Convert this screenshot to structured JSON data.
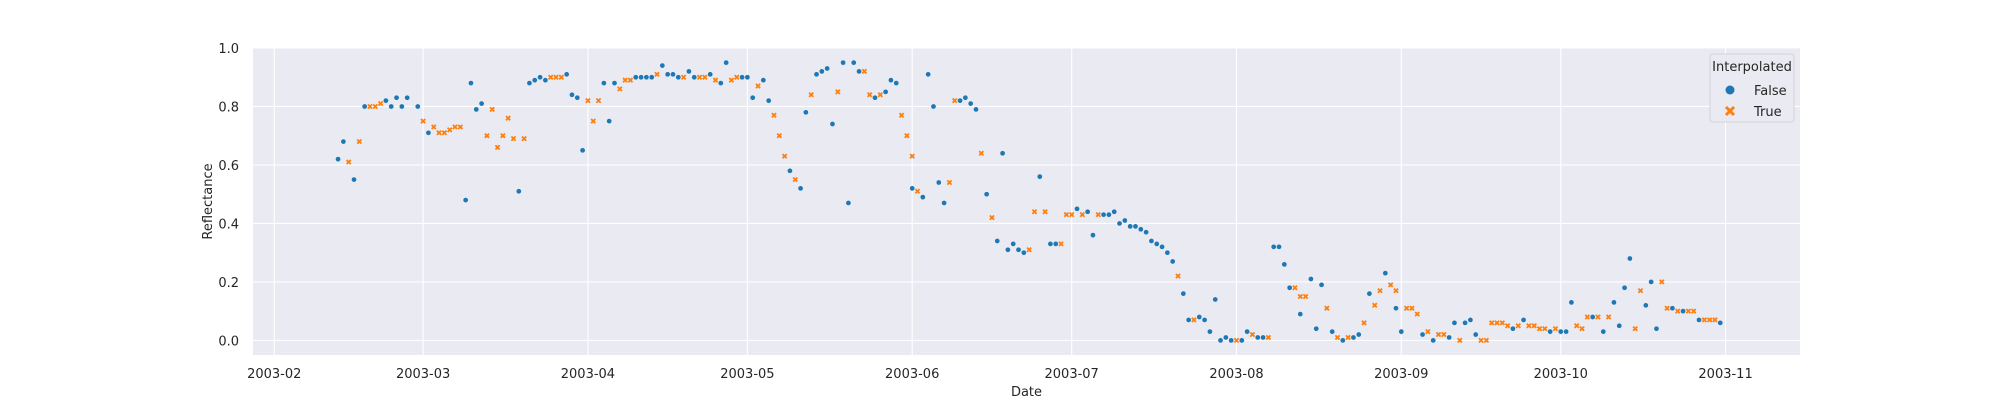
{
  "chart_data": {
    "type": "scatter",
    "title": "",
    "xlabel": "Date",
    "ylabel": "Reflectance",
    "xlim": [
      "2003-01-28",
      "2003-11-15"
    ],
    "ylim": [
      -0.05,
      1.0
    ],
    "grid": true,
    "background": "#eaeaf2",
    "x_ticks": [
      "2003-02",
      "2003-03",
      "2003-04",
      "2003-05",
      "2003-06",
      "2003-07",
      "2003-08",
      "2003-09",
      "2003-10",
      "2003-11"
    ],
    "y_ticks": [
      "0.0",
      "0.2",
      "0.4",
      "0.6",
      "0.8",
      "1.0"
    ],
    "legend": {
      "title": "Interpolated",
      "position": "top-right"
    },
    "series": [
      {
        "name": "False",
        "marker": "circle",
        "color": "#1f77b4",
        "points": [
          [
            "2003-02-13",
            0.62
          ],
          [
            "2003-02-14",
            0.68
          ],
          [
            "2003-02-16",
            0.55
          ],
          [
            "2003-02-18",
            0.8
          ],
          [
            "2003-02-22",
            0.82
          ],
          [
            "2003-02-23",
            0.8
          ],
          [
            "2003-02-24",
            0.83
          ],
          [
            "2003-02-25",
            0.8
          ],
          [
            "2003-02-26",
            0.83
          ],
          [
            "2003-02-28",
            0.8
          ],
          [
            "2003-03-02",
            0.71
          ],
          [
            "2003-03-09",
            0.48
          ],
          [
            "2003-03-10",
            0.88
          ],
          [
            "2003-03-11",
            0.79
          ],
          [
            "2003-03-12",
            0.81
          ],
          [
            "2003-03-19",
            0.51
          ],
          [
            "2003-03-21",
            0.88
          ],
          [
            "2003-03-22",
            0.89
          ],
          [
            "2003-03-23",
            0.9
          ],
          [
            "2003-03-24",
            0.89
          ],
          [
            "2003-03-28",
            0.91
          ],
          [
            "2003-03-29",
            0.84
          ],
          [
            "2003-03-30",
            0.83
          ],
          [
            "2003-03-31",
            0.65
          ],
          [
            "2003-04-04",
            0.88
          ],
          [
            "2003-04-05",
            0.75
          ],
          [
            "2003-04-06",
            0.88
          ],
          [
            "2003-04-10",
            0.9
          ],
          [
            "2003-04-11",
            0.9
          ],
          [
            "2003-04-12",
            0.9
          ],
          [
            "2003-04-13",
            0.9
          ],
          [
            "2003-04-15",
            0.94
          ],
          [
            "2003-04-16",
            0.91
          ],
          [
            "2003-04-17",
            0.91
          ],
          [
            "2003-04-18",
            0.9
          ],
          [
            "2003-04-20",
            0.92
          ],
          [
            "2003-04-21",
            0.9
          ],
          [
            "2003-04-24",
            0.91
          ],
          [
            "2003-04-26",
            0.88
          ],
          [
            "2003-04-27",
            0.95
          ],
          [
            "2003-04-30",
            0.9
          ],
          [
            "2003-05-01",
            0.9
          ],
          [
            "2003-05-02",
            0.83
          ],
          [
            "2003-05-04",
            0.89
          ],
          [
            "2003-05-05",
            0.82
          ],
          [
            "2003-05-09",
            0.58
          ],
          [
            "2003-05-11",
            0.52
          ],
          [
            "2003-05-12",
            0.78
          ],
          [
            "2003-05-14",
            0.91
          ],
          [
            "2003-05-15",
            0.92
          ],
          [
            "2003-05-16",
            0.93
          ],
          [
            "2003-05-17",
            0.74
          ],
          [
            "2003-05-19",
            0.95
          ],
          [
            "2003-05-20",
            0.47
          ],
          [
            "2003-05-21",
            0.95
          ],
          [
            "2003-05-22",
            0.92
          ],
          [
            "2003-05-25",
            0.83
          ],
          [
            "2003-05-27",
            0.85
          ],
          [
            "2003-05-28",
            0.89
          ],
          [
            "2003-05-29",
            0.88
          ],
          [
            "2003-06-01",
            0.52
          ],
          [
            "2003-06-03",
            0.49
          ],
          [
            "2003-06-04",
            0.91
          ],
          [
            "2003-06-05",
            0.8
          ],
          [
            "2003-06-06",
            0.54
          ],
          [
            "2003-06-07",
            0.47
          ],
          [
            "2003-06-10",
            0.82
          ],
          [
            "2003-06-11",
            0.83
          ],
          [
            "2003-06-12",
            0.81
          ],
          [
            "2003-06-13",
            0.79
          ],
          [
            "2003-06-15",
            0.5
          ],
          [
            "2003-06-17",
            0.34
          ],
          [
            "2003-06-18",
            0.64
          ],
          [
            "2003-06-19",
            0.31
          ],
          [
            "2003-06-20",
            0.33
          ],
          [
            "2003-06-21",
            0.31
          ],
          [
            "2003-06-22",
            0.3
          ],
          [
            "2003-06-25",
            0.56
          ],
          [
            "2003-06-27",
            0.33
          ],
          [
            "2003-06-28",
            0.33
          ],
          [
            "2003-07-02",
            0.45
          ],
          [
            "2003-07-04",
            0.44
          ],
          [
            "2003-07-05",
            0.36
          ],
          [
            "2003-07-07",
            0.43
          ],
          [
            "2003-07-08",
            0.43
          ],
          [
            "2003-07-09",
            0.44
          ],
          [
            "2003-07-10",
            0.4
          ],
          [
            "2003-07-11",
            0.41
          ],
          [
            "2003-07-12",
            0.39
          ],
          [
            "2003-07-13",
            0.39
          ],
          [
            "2003-07-14",
            0.38
          ],
          [
            "2003-07-15",
            0.37
          ],
          [
            "2003-07-16",
            0.34
          ],
          [
            "2003-07-17",
            0.33
          ],
          [
            "2003-07-18",
            0.32
          ],
          [
            "2003-07-19",
            0.3
          ],
          [
            "2003-07-20",
            0.27
          ],
          [
            "2003-07-22",
            0.16
          ],
          [
            "2003-07-23",
            0.07
          ],
          [
            "2003-07-25",
            0.08
          ],
          [
            "2003-07-26",
            0.07
          ],
          [
            "2003-07-27",
            0.03
          ],
          [
            "2003-07-28",
            0.14
          ],
          [
            "2003-07-29",
            0.0
          ],
          [
            "2003-07-30",
            0.01
          ],
          [
            "2003-07-31",
            0.0
          ],
          [
            "2003-08-02",
            0.0
          ],
          [
            "2003-08-03",
            0.03
          ],
          [
            "2003-08-05",
            0.01
          ],
          [
            "2003-08-06",
            0.01
          ],
          [
            "2003-08-08",
            0.32
          ],
          [
            "2003-08-09",
            0.32
          ],
          [
            "2003-08-10",
            0.26
          ],
          [
            "2003-08-11",
            0.18
          ],
          [
            "2003-08-13",
            0.09
          ],
          [
            "2003-08-15",
            0.21
          ],
          [
            "2003-08-16",
            0.04
          ],
          [
            "2003-08-17",
            0.19
          ],
          [
            "2003-08-19",
            0.03
          ],
          [
            "2003-08-21",
            0.0
          ],
          [
            "2003-08-23",
            0.01
          ],
          [
            "2003-08-24",
            0.02
          ],
          [
            "2003-08-26",
            0.16
          ],
          [
            "2003-08-29",
            0.23
          ],
          [
            "2003-08-31",
            0.11
          ],
          [
            "2003-09-01",
            0.03
          ],
          [
            "2003-09-05",
            0.02
          ],
          [
            "2003-09-07",
            0.0
          ],
          [
            "2003-09-10",
            0.01
          ],
          [
            "2003-09-11",
            0.06
          ],
          [
            "2003-09-13",
            0.06
          ],
          [
            "2003-09-14",
            0.07
          ],
          [
            "2003-09-15",
            0.02
          ],
          [
            "2003-09-22",
            0.04
          ],
          [
            "2003-09-24",
            0.07
          ],
          [
            "2003-09-29",
            0.03
          ],
          [
            "2003-10-01",
            0.03
          ],
          [
            "2003-10-02",
            0.03
          ],
          [
            "2003-10-03",
            0.13
          ],
          [
            "2003-10-07",
            0.08
          ],
          [
            "2003-10-09",
            0.03
          ],
          [
            "2003-10-11",
            0.13
          ],
          [
            "2003-10-12",
            0.05
          ],
          [
            "2003-10-13",
            0.18
          ],
          [
            "2003-10-14",
            0.28
          ],
          [
            "2003-10-17",
            0.12
          ],
          [
            "2003-10-18",
            0.2
          ],
          [
            "2003-10-19",
            0.04
          ],
          [
            "2003-10-22",
            0.11
          ],
          [
            "2003-10-24",
            0.1
          ],
          [
            "2003-10-27",
            0.07
          ],
          [
            "2003-10-31",
            0.06
          ]
        ]
      },
      {
        "name": "True",
        "marker": "x",
        "color": "#ff7f0e",
        "points": [
          [
            "2003-02-15",
            0.61
          ],
          [
            "2003-02-17",
            0.68
          ],
          [
            "2003-02-19",
            0.8
          ],
          [
            "2003-02-20",
            0.8
          ],
          [
            "2003-02-21",
            0.81
          ],
          [
            "2003-03-01",
            0.75
          ],
          [
            "2003-03-03",
            0.73
          ],
          [
            "2003-03-04",
            0.71
          ],
          [
            "2003-03-05",
            0.71
          ],
          [
            "2003-03-06",
            0.72
          ],
          [
            "2003-03-07",
            0.73
          ],
          [
            "2003-03-08",
            0.73
          ],
          [
            "2003-03-13",
            0.7
          ],
          [
            "2003-03-14",
            0.79
          ],
          [
            "2003-03-15",
            0.66
          ],
          [
            "2003-03-16",
            0.7
          ],
          [
            "2003-03-17",
            0.76
          ],
          [
            "2003-03-18",
            0.69
          ],
          [
            "2003-03-20",
            0.69
          ],
          [
            "2003-03-25",
            0.9
          ],
          [
            "2003-03-26",
            0.9
          ],
          [
            "2003-03-27",
            0.9
          ],
          [
            "2003-04-01",
            0.82
          ],
          [
            "2003-04-02",
            0.75
          ],
          [
            "2003-04-03",
            0.82
          ],
          [
            "2003-04-07",
            0.86
          ],
          [
            "2003-04-08",
            0.89
          ],
          [
            "2003-04-09",
            0.89
          ],
          [
            "2003-04-14",
            0.91
          ],
          [
            "2003-04-19",
            0.9
          ],
          [
            "2003-04-22",
            0.9
          ],
          [
            "2003-04-23",
            0.9
          ],
          [
            "2003-04-25",
            0.89
          ],
          [
            "2003-04-28",
            0.89
          ],
          [
            "2003-04-29",
            0.9
          ],
          [
            "2003-05-03",
            0.87
          ],
          [
            "2003-05-06",
            0.77
          ],
          [
            "2003-05-07",
            0.7
          ],
          [
            "2003-05-08",
            0.63
          ],
          [
            "2003-05-10",
            0.55
          ],
          [
            "2003-05-13",
            0.84
          ],
          [
            "2003-05-18",
            0.85
          ],
          [
            "2003-05-23",
            0.92
          ],
          [
            "2003-05-24",
            0.84
          ],
          [
            "2003-05-26",
            0.84
          ],
          [
            "2003-05-30",
            0.77
          ],
          [
            "2003-05-31",
            0.7
          ],
          [
            "2003-06-01",
            0.63
          ],
          [
            "2003-06-02",
            0.51
          ],
          [
            "2003-06-08",
            0.54
          ],
          [
            "2003-06-09",
            0.82
          ],
          [
            "2003-06-14",
            0.64
          ],
          [
            "2003-06-16",
            0.42
          ],
          [
            "2003-06-23",
            0.31
          ],
          [
            "2003-06-24",
            0.44
          ],
          [
            "2003-06-26",
            0.44
          ],
          [
            "2003-06-29",
            0.33
          ],
          [
            "2003-06-30",
            0.43
          ],
          [
            "2003-07-01",
            0.43
          ],
          [
            "2003-07-03",
            0.43
          ],
          [
            "2003-07-06",
            0.43
          ],
          [
            "2003-07-21",
            0.22
          ],
          [
            "2003-07-24",
            0.07
          ],
          [
            "2003-08-01",
            0.0
          ],
          [
            "2003-08-04",
            0.02
          ],
          [
            "2003-08-07",
            0.01
          ],
          [
            "2003-08-12",
            0.18
          ],
          [
            "2003-08-13",
            0.15
          ],
          [
            "2003-08-14",
            0.15
          ],
          [
            "2003-08-18",
            0.11
          ],
          [
            "2003-08-20",
            0.01
          ],
          [
            "2003-08-22",
            0.01
          ],
          [
            "2003-08-25",
            0.06
          ],
          [
            "2003-08-27",
            0.12
          ],
          [
            "2003-08-28",
            0.17
          ],
          [
            "2003-08-30",
            0.19
          ],
          [
            "2003-08-31",
            0.17
          ],
          [
            "2003-09-02",
            0.11
          ],
          [
            "2003-09-03",
            0.11
          ],
          [
            "2003-09-04",
            0.09
          ],
          [
            "2003-09-06",
            0.03
          ],
          [
            "2003-09-08",
            0.02
          ],
          [
            "2003-09-09",
            0.02
          ],
          [
            "2003-09-12",
            0.0
          ],
          [
            "2003-09-16",
            0.0
          ],
          [
            "2003-09-17",
            0.0
          ],
          [
            "2003-09-18",
            0.06
          ],
          [
            "2003-09-19",
            0.06
          ],
          [
            "2003-09-20",
            0.06
          ],
          [
            "2003-09-21",
            0.05
          ],
          [
            "2003-09-23",
            0.05
          ],
          [
            "2003-09-25",
            0.05
          ],
          [
            "2003-09-26",
            0.05
          ],
          [
            "2003-09-27",
            0.04
          ],
          [
            "2003-09-28",
            0.04
          ],
          [
            "2003-09-30",
            0.04
          ],
          [
            "2003-10-04",
            0.05
          ],
          [
            "2003-10-05",
            0.04
          ],
          [
            "2003-10-06",
            0.08
          ],
          [
            "2003-10-08",
            0.08
          ],
          [
            "2003-10-10",
            0.08
          ],
          [
            "2003-10-15",
            0.04
          ],
          [
            "2003-10-16",
            0.17
          ],
          [
            "2003-10-20",
            0.2
          ],
          [
            "2003-10-21",
            0.11
          ],
          [
            "2003-10-23",
            0.1
          ],
          [
            "2003-10-25",
            0.1
          ],
          [
            "2003-10-26",
            0.1
          ],
          [
            "2003-10-28",
            0.07
          ],
          [
            "2003-10-29",
            0.07
          ],
          [
            "2003-10-30",
            0.07
          ]
        ]
      }
    ]
  }
}
